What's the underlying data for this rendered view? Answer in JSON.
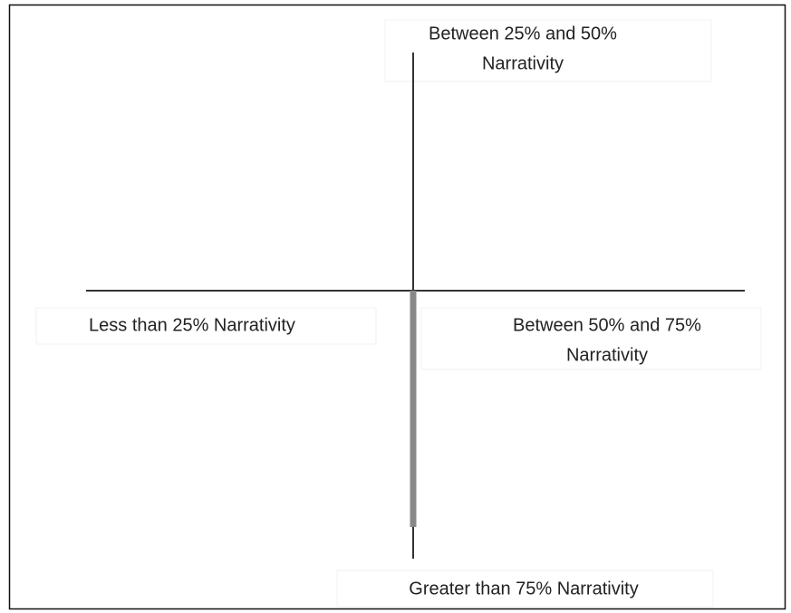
{
  "labels": [
    {
      "lines": [
        "Between 25% and 50%",
        "Narrativity"
      ]
    },
    {
      "lines": [
        "Less than 25% Narrativity"
      ]
    },
    {
      "lines": [
        "Between 50% and 75%",
        "Narrativity"
      ]
    },
    {
      "lines": [
        "Greater than 75% Narrativity"
      ]
    }
  ]
}
